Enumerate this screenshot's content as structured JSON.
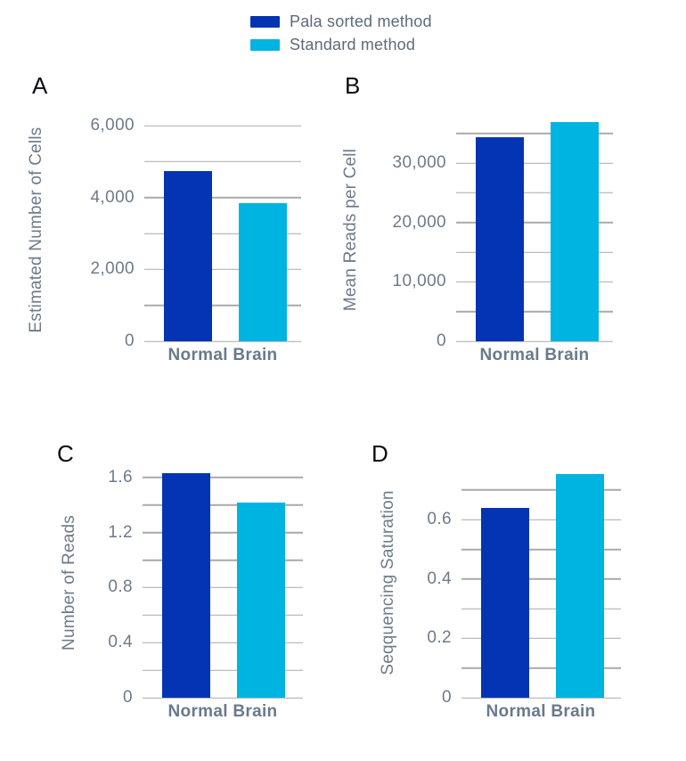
{
  "legend": {
    "items": [
      {
        "label": "Pala sorted method",
        "color": "#0434b3"
      },
      {
        "label": "Standard method",
        "color": "#00b4e2"
      }
    ]
  },
  "chart_data": [
    {
      "type": "bar",
      "panel": "A",
      "ylabel": "Estimated Number of Cells",
      "categories": [
        "Normal Brain"
      ],
      "series": [
        {
          "name": "Pala sorted method",
          "color": "#0434b3",
          "values": [
            4740
          ]
        },
        {
          "name": "Standard method",
          "color": "#00b4e2",
          "values": [
            3850
          ]
        }
      ],
      "ylim": [
        0,
        6200
      ],
      "ticks": [
        {
          "value": 0,
          "label": "0"
        },
        {
          "value": 2000,
          "label": "2,000"
        },
        {
          "value": 4000,
          "label": "4,000"
        },
        {
          "value": 6000,
          "label": "6,000"
        }
      ],
      "gridlines": [
        0,
        1000,
        2000,
        3000,
        4000,
        5000,
        6000
      ],
      "grid": true,
      "legend_position": "top-center"
    },
    {
      "type": "bar",
      "panel": "B",
      "ylabel": "Mean Reads per Cell",
      "categories": [
        "Normal Brain"
      ],
      "series": [
        {
          "name": "Pala sorted method",
          "color": "#0434b3",
          "values": [
            34300
          ]
        },
        {
          "name": "Standard method",
          "color": "#00b4e2",
          "values": [
            36900
          ]
        }
      ],
      "ylim": [
        0,
        37500
      ],
      "ticks": [
        {
          "value": 0,
          "label": "0"
        },
        {
          "value": 10000,
          "label": "10,000"
        },
        {
          "value": 20000,
          "label": "20,000"
        },
        {
          "value": 30000,
          "label": "30,000"
        }
      ],
      "gridlines": [
        0,
        5000,
        10000,
        15000,
        20000,
        25000,
        30000,
        35000
      ],
      "grid": true,
      "legend_position": "top-center"
    },
    {
      "type": "bar",
      "panel": "C",
      "ylabel": "Number of Reads",
      "categories": [
        "Normal Brain"
      ],
      "series": [
        {
          "name": "Pala sorted method",
          "color": "#0434b3",
          "values": [
            1.63
          ]
        },
        {
          "name": "Standard method",
          "color": "#00b4e2",
          "values": [
            1.42
          ]
        }
      ],
      "ylim": [
        0,
        1.67
      ],
      "ticks": [
        {
          "value": 0,
          "label": "0"
        },
        {
          "value": 0.4,
          "label": "0.4"
        },
        {
          "value": 0.8,
          "label": "0.8"
        },
        {
          "value": 1.2,
          "label": "1.2"
        },
        {
          "value": 1.6,
          "label": "1.6"
        }
      ],
      "gridlines": [
        0,
        0.2,
        0.4,
        0.6,
        0.8,
        1.0,
        1.2,
        1.4,
        1.6
      ],
      "grid": true,
      "legend_position": "top-center"
    },
    {
      "type": "bar",
      "panel": "D",
      "ylabel": "Seqquencing Saturation",
      "categories": [
        "Normal Brain"
      ],
      "series": [
        {
          "name": "Pala sorted method",
          "color": "#0434b3",
          "values": [
            0.64
          ]
        },
        {
          "name": "Standard method",
          "color": "#00b4e2",
          "values": [
            0.755
          ]
        }
      ],
      "ylim": [
        0,
        0.775
      ],
      "ticks": [
        {
          "value": 0,
          "label": "0"
        },
        {
          "value": 0.2,
          "label": "0.2"
        },
        {
          "value": 0.4,
          "label": "0.4"
        },
        {
          "value": 0.6,
          "label": "0.6"
        }
      ],
      "gridlines": [
        0,
        0.1,
        0.2,
        0.3,
        0.4,
        0.5,
        0.6,
        0.7
      ],
      "grid": true,
      "legend_position": "top-center"
    }
  ]
}
